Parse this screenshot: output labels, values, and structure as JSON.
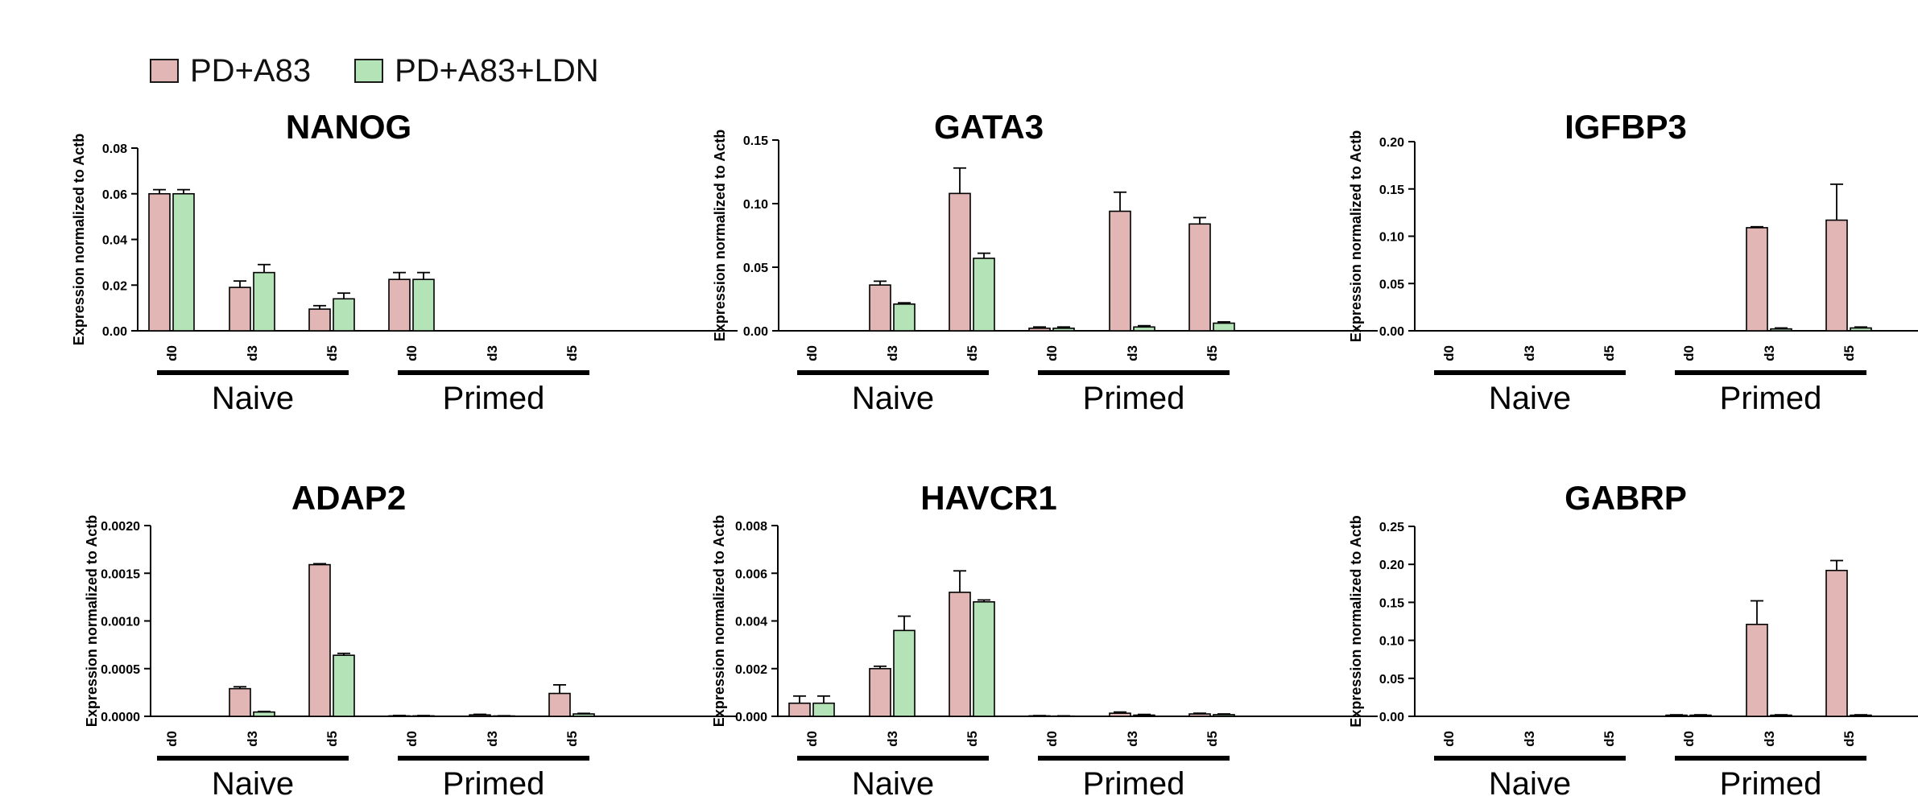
{
  "colors": {
    "pd_a83": "#e2b6b5",
    "pd_a83_ldn": "#b4e3b7",
    "axis": "#000000"
  },
  "legend": [
    {
      "label": "PD+A83",
      "color": "#e2b6b5"
    },
    {
      "label": "PD+A83+LDN",
      "color": "#b4e3b7"
    }
  ],
  "chart_data": [
    {
      "type": "bar",
      "title": "NANOG",
      "ylabel": "Expression normalized to Actb",
      "yticks": [
        "0.00",
        "0.02",
        "0.04",
        "0.06",
        "0.08"
      ],
      "ylim": [
        0,
        0.08
      ],
      "categories": [
        "d0",
        "d3",
        "d5",
        "d0",
        "d3",
        "d5"
      ],
      "groups": [
        "Naive",
        "Primed"
      ],
      "series": [
        {
          "name": "PD+A83",
          "values": [
            0.06,
            0.019,
            0.0095,
            0.0225,
            0,
            0
          ],
          "errors": [
            0.0018,
            0.0028,
            0.0015,
            0.003,
            0,
            0
          ]
        },
        {
          "name": "PD+A83+LDN",
          "values": [
            0.06,
            0.0255,
            0.014,
            0.0225,
            0,
            0
          ],
          "errors": [
            0.0018,
            0.0035,
            0.0025,
            0.003,
            0,
            0
          ]
        }
      ]
    },
    {
      "type": "bar",
      "title": "GATA3",
      "ylabel": "Expression normalized to Actb",
      "yticks": [
        "0.00",
        "0.05",
        "0.10",
        "0.15"
      ],
      "ylim": [
        0,
        0.15
      ],
      "categories": [
        "d0",
        "d3",
        "d5",
        "d0",
        "d3",
        "d5"
      ],
      "groups": [
        "Naive",
        "Primed"
      ],
      "series": [
        {
          "name": "PD+A83",
          "values": [
            0,
            0.036,
            0.108,
            0.002,
            0.094,
            0.084
          ],
          "errors": [
            0,
            0.003,
            0.02,
            0.001,
            0.015,
            0.005
          ]
        },
        {
          "name": "PD+A83+LDN",
          "values": [
            0,
            0.021,
            0.057,
            0.002,
            0.003,
            0.006
          ],
          "errors": [
            0,
            0.001,
            0.004,
            0.001,
            0.001,
            0.001
          ]
        }
      ]
    },
    {
      "type": "bar",
      "title": "IGFBP3",
      "ylabel": "Expression normalized to Actb",
      "yticks": [
        "0.00",
        "0.05",
        "0.10",
        "0.15",
        "0.20"
      ],
      "ylim": [
        0,
        0.2
      ],
      "categories": [
        "d0",
        "d3",
        "d5",
        "d0",
        "d3",
        "d5"
      ],
      "groups": [
        "Naive",
        "Primed"
      ],
      "series": [
        {
          "name": "PD+A83",
          "values": [
            0,
            0,
            0,
            0,
            0.109,
            0.117
          ],
          "errors": [
            0,
            0,
            0,
            0,
            0.001,
            0.038
          ]
        },
        {
          "name": "PD+A83+LDN",
          "values": [
            0,
            0,
            0,
            0,
            0.002,
            0.003
          ],
          "errors": [
            0,
            0,
            0,
            0,
            0.001,
            0.001
          ]
        }
      ]
    },
    {
      "type": "bar",
      "title": "ADAP2",
      "ylabel": "Expression normalized to Actb",
      "yticks": [
        "0.0000",
        "0.0005",
        "0.0010",
        "0.0015",
        "0.0020"
      ],
      "ylim": [
        0,
        0.002
      ],
      "categories": [
        "d0",
        "d3",
        "d5",
        "d0",
        "d3",
        "d5"
      ],
      "groups": [
        "Naive",
        "Primed"
      ],
      "series": [
        {
          "name": "PD+A83",
          "values": [
            0,
            0.00029,
            0.00159,
            5e-06,
            1.5e-05,
            0.00024
          ],
          "errors": [
            0,
            2e-05,
            1e-05,
            4e-06,
            6e-06,
            9e-05
          ]
        },
        {
          "name": "PD+A83+LDN",
          "values": [
            0,
            4.5e-05,
            0.00064,
            5e-06,
            4e-06,
            2.5e-05
          ],
          "errors": [
            0,
            6e-06,
            2e-05,
            3e-06,
            2e-06,
            6e-06
          ]
        }
      ]
    },
    {
      "type": "bar",
      "title": "HAVCR1",
      "ylabel": "Expression normalized to Actb",
      "yticks": [
        "0.000",
        "0.002",
        "0.004",
        "0.006",
        "0.008"
      ],
      "ylim": [
        0,
        0.008
      ],
      "categories": [
        "d0",
        "d3",
        "d5",
        "d0",
        "d3",
        "d5"
      ],
      "groups": [
        "Naive",
        "Primed"
      ],
      "series": [
        {
          "name": "PD+A83",
          "values": [
            0.00055,
            0.002,
            0.0052,
            2e-05,
            0.00013,
            0.0001
          ],
          "errors": [
            0.0003,
            0.0001,
            0.0009,
            1e-05,
            5e-05,
            3e-05
          ]
        },
        {
          "name": "PD+A83+LDN",
          "values": [
            0.00055,
            0.0036,
            0.0048,
            1e-05,
            5e-05,
            7e-05
          ],
          "errors": [
            0.0003,
            0.0006,
            8e-05,
            1e-05,
            3e-05,
            3e-05
          ]
        }
      ]
    },
    {
      "type": "bar",
      "title": "GABRP",
      "ylabel": "Expression normalized to Actb",
      "yticks": [
        "0.00",
        "0.05",
        "0.10",
        "0.15",
        "0.20",
        "0.25"
      ],
      "ylim": [
        0,
        0.25
      ],
      "categories": [
        "d0",
        "d3",
        "d5",
        "d0",
        "d3",
        "d5"
      ],
      "groups": [
        "Naive",
        "Primed"
      ],
      "series": [
        {
          "name": "PD+A83",
          "values": [
            0,
            0,
            0,
            0.0015,
            0.121,
            0.192
          ],
          "errors": [
            0,
            0,
            0,
            0.0005,
            0.031,
            0.013
          ]
        },
        {
          "name": "PD+A83+LDN",
          "values": [
            0,
            0,
            0,
            0.0015,
            0.0015,
            0.0015
          ],
          "errors": [
            0,
            0,
            0,
            0.0005,
            0.0005,
            0.0005
          ]
        }
      ]
    }
  ]
}
